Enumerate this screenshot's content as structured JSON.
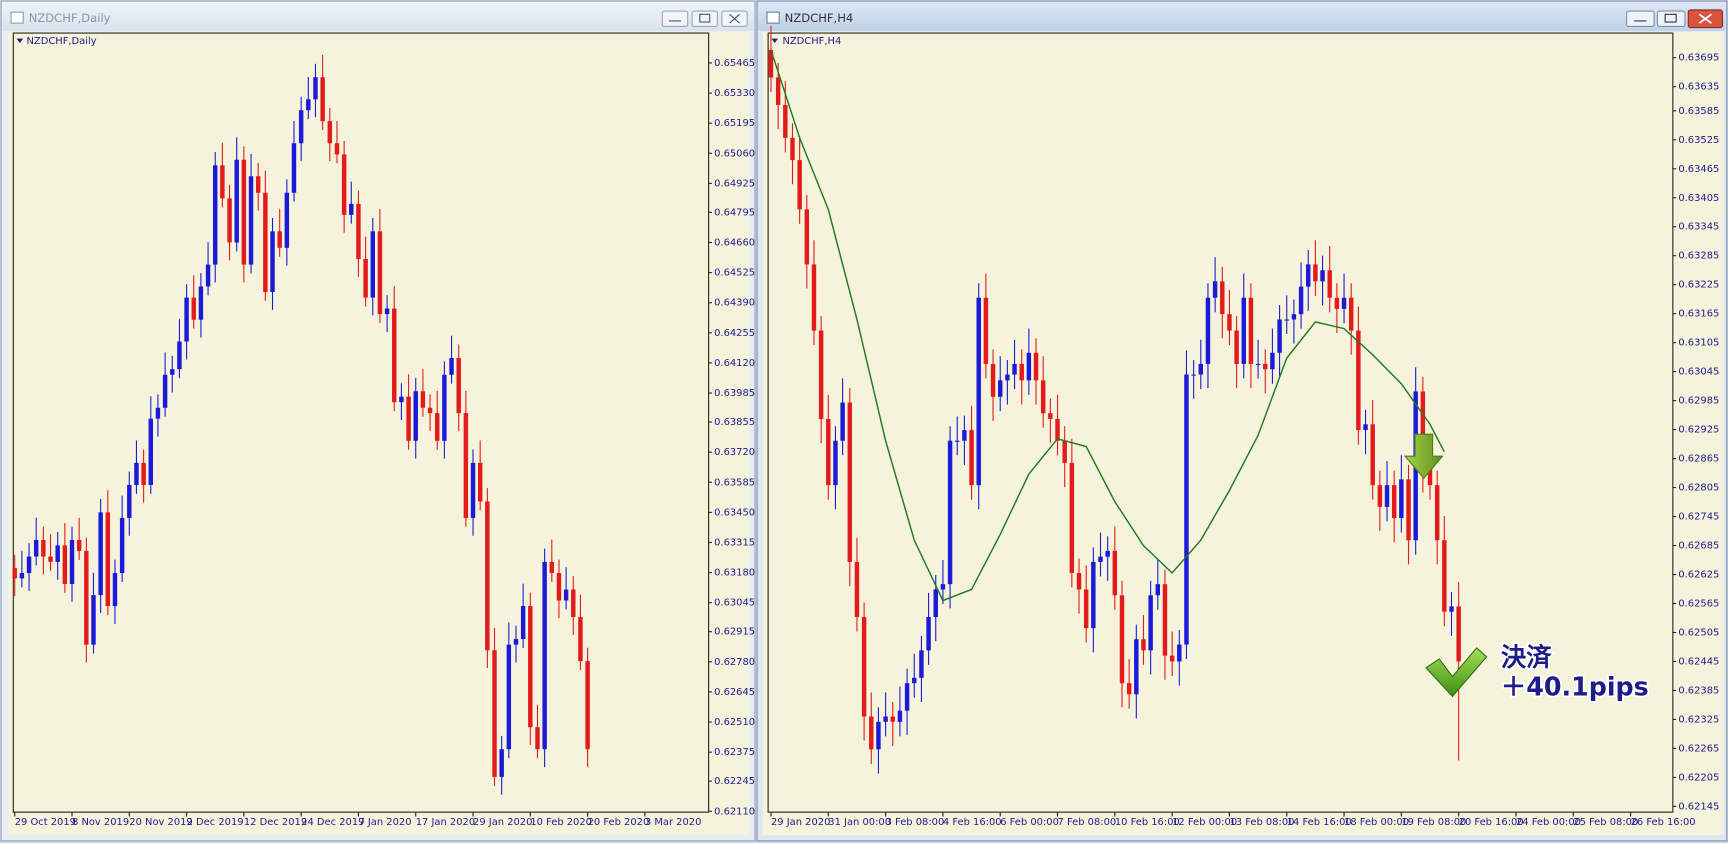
{
  "chart_data": [
    {
      "type": "candlestick",
      "window_title": "NZDCHF,Daily",
      "title": "NZDCHF,Daily",
      "up_color": "#1a1ad8",
      "down_color": "#e31b1b",
      "background": "#f6f3dc",
      "xlim": [
        -0.2,
        96.9
      ],
      "ylim": [
        0.62106,
        0.65599
      ],
      "yticks": [
        {
          "value": 0.6211,
          "label": "0.62110"
        },
        0.62245,
        0.62375,
        {
          "value": 0.6251,
          "label": "0.62510"
        },
        0.62645,
        {
          "value": 0.6278,
          "label": "0.62780"
        },
        0.62915,
        0.63045,
        {
          "value": 0.6318,
          "label": "0.63180"
        },
        0.63315,
        {
          "value": 0.6345,
          "label": "0.63450"
        },
        0.63585,
        {
          "value": 0.6372,
          "label": "0.63720"
        },
        0.63855,
        0.63985,
        {
          "value": 0.6412,
          "label": "0.64120"
        },
        0.64255,
        {
          "value": 0.6439,
          "label": "0.64390"
        },
        0.64525,
        {
          "value": 0.6466,
          "label": "0.64660"
        },
        0.64795,
        0.64925,
        {
          "value": 0.6506,
          "label": "0.65060"
        },
        0.65195,
        {
          "value": 0.6533,
          "label": "0.65330"
        },
        0.65465
      ],
      "xticks": [
        {
          "value": 0,
          "label": "29 Oct 2019"
        },
        {
          "value": 8,
          "label": "8 Nov 2019"
        },
        {
          "value": 16,
          "label": "20 Nov 2019"
        },
        {
          "value": 24,
          "label": "2 Dec 2019"
        },
        {
          "value": 32,
          "label": "12 Dec 2019"
        },
        {
          "value": 40,
          "label": "24 Dec 2019"
        },
        {
          "value": 48,
          "label": "7 Jan 2020"
        },
        {
          "value": 56,
          "label": "17 Jan 2020"
        },
        {
          "value": 64,
          "label": "29 Jan 2020"
        },
        {
          "value": 72,
          "label": "10 Feb 2020"
        },
        {
          "value": 80,
          "label": "20 Feb 2020"
        },
        {
          "value": 88,
          "label": "3 Mar 2020"
        }
      ],
      "open": [
        0.632,
        0.63154,
        0.63178,
        0.63252,
        0.63326,
        0.63252,
        0.63228,
        0.63302,
        0.63129,
        0.63326,
        0.63277,
        0.62857,
        0.63079,
        0.6345,
        0.6303,
        0.63178,
        0.63425,
        0.63573,
        0.63672,
        0.63573,
        0.6387,
        0.63919,
        0.64067,
        0.64092,
        0.64216,
        0.64413,
        0.64314,
        0.64463,
        0.64561,
        0.65006,
        0.64858,
        0.6466,
        0.65031,
        0.64561,
        0.64957,
        0.64883,
        0.64438,
        0.6471,
        0.64636,
        0.64883,
        0.65105,
        0.65253,
        0.65302,
        0.65401,
        0.65204,
        0.65105,
        0.65055,
        0.64784,
        0.64833,
        0.64586,
        0.64413,
        0.6471,
        0.64339,
        0.64364,
        0.63944,
        0.63969,
        0.63771,
        0.63993,
        0.63919,
        0.63895,
        0.63771,
        0.64067,
        0.64142,
        0.63895,
        0.63425,
        0.63672,
        0.63499,
        0.62832,
        0.62264,
        0.62388,
        0.62857,
        0.62882,
        0.6303,
        0.62487,
        0.62388,
        0.63228,
        0.63178,
        0.63055,
        0.63104,
        0.62981,
        0.62783
      ],
      "high": [
        0.6326,
        0.63278,
        0.63312,
        0.63426,
        0.63386,
        0.63352,
        0.63362,
        0.63402,
        0.63386,
        0.63426,
        0.63337,
        0.63179,
        0.6351,
        0.6355,
        0.63238,
        0.63525,
        0.63633,
        0.63772,
        0.63732,
        0.6397,
        0.63979,
        0.64167,
        0.64152,
        0.64316,
        0.64473,
        0.64513,
        0.64523,
        0.64661,
        0.65066,
        0.65106,
        0.64918,
        0.65131,
        0.65091,
        0.65057,
        0.65017,
        0.64983,
        0.6477,
        0.6481,
        0.64943,
        0.65205,
        0.65313,
        0.65402,
        0.65461,
        0.65501,
        0.65264,
        0.65205,
        0.65115,
        0.64933,
        0.64893,
        0.64686,
        0.6477,
        0.6481,
        0.64424,
        0.64464,
        0.64029,
        0.64069,
        0.64053,
        0.64093,
        0.63979,
        0.63995,
        0.64127,
        0.64242,
        0.64202,
        0.63995,
        0.63732,
        0.63772,
        0.63559,
        0.62932,
        0.62448,
        0.62957,
        0.62942,
        0.6313,
        0.6309,
        0.62587,
        0.63288,
        0.63328,
        0.63238,
        0.63204,
        0.63164,
        0.63081,
        0.62843
      ],
      "low": [
        0.63074,
        0.63114,
        0.63098,
        0.63212,
        0.63172,
        0.63188,
        0.63148,
        0.63089,
        0.63049,
        0.63237,
        0.62777,
        0.62817,
        0.62999,
        0.6299,
        0.6295,
        0.63138,
        0.63345,
        0.63533,
        0.63493,
        0.63533,
        0.6379,
        0.63879,
        0.63987,
        0.64052,
        0.64136,
        0.64274,
        0.64234,
        0.64423,
        0.64481,
        0.64818,
        0.6458,
        0.6462,
        0.64481,
        0.64521,
        0.64803,
        0.64398,
        0.64358,
        0.64596,
        0.64556,
        0.64843,
        0.65025,
        0.65213,
        0.65222,
        0.65164,
        0.65025,
        0.65015,
        0.64704,
        0.64744,
        0.64506,
        0.64373,
        0.64333,
        0.64299,
        0.64259,
        0.63904,
        0.63864,
        0.63731,
        0.63691,
        0.63879,
        0.63815,
        0.63731,
        0.63691,
        0.64027,
        0.63815,
        0.63385,
        0.63345,
        0.63459,
        0.62752,
        0.62224,
        0.62184,
        0.62348,
        0.62777,
        0.62842,
        0.62407,
        0.62348,
        0.62308,
        0.63138,
        0.62975,
        0.63015,
        0.62901,
        0.62743,
        0.62308
      ],
      "close": [
        0.63154,
        0.63178,
        0.63252,
        0.63326,
        0.63252,
        0.63228,
        0.63302,
        0.63129,
        0.63326,
        0.63277,
        0.62857,
        0.63079,
        0.6345,
        0.6303,
        0.63178,
        0.63425,
        0.63573,
        0.63672,
        0.63573,
        0.6387,
        0.63919,
        0.64067,
        0.64092,
        0.64216,
        0.64413,
        0.64314,
        0.64463,
        0.64561,
        0.65006,
        0.64858,
        0.6466,
        0.65031,
        0.64561,
        0.64957,
        0.64883,
        0.64438,
        0.6471,
        0.64636,
        0.64883,
        0.65105,
        0.65253,
        0.65302,
        0.65401,
        0.65204,
        0.65105,
        0.65055,
        0.64784,
        0.64833,
        0.64586,
        0.64413,
        0.6471,
        0.64339,
        0.64364,
        0.63944,
        0.63969,
        0.63771,
        0.63993,
        0.63919,
        0.63895,
        0.63771,
        0.64067,
        0.64142,
        0.63895,
        0.63425,
        0.63672,
        0.63499,
        0.62832,
        0.62264,
        0.62388,
        0.62857,
        0.62882,
        0.6303,
        0.62487,
        0.62388,
        0.63228,
        0.63178,
        0.63055,
        0.63104,
        0.62981,
        0.62783,
        0.62388
      ]
    },
    {
      "type": "candlestick",
      "window_title": "NZDCHF,H4",
      "title": "NZDCHF,H4",
      "up_color": "#1a1ad8",
      "down_color": "#e31b1b",
      "background": "#f6f3dc",
      "xlim": [
        -0.4,
        125.9
      ],
      "ylim": [
        0.62133,
        0.63746
      ],
      "yticks": [
        0.62145,
        0.62205,
        0.62265,
        0.62325,
        0.62385,
        0.62445,
        0.62505,
        0.62565,
        0.62625,
        0.62685,
        0.62745,
        0.62805,
        0.62865,
        0.62925,
        0.62985,
        0.63045,
        0.63105,
        0.63165,
        0.63225,
        0.63285,
        0.63345,
        0.63405,
        0.63465,
        0.63525,
        0.63585,
        0.63635,
        0.63695
      ],
      "xticks": [
        {
          "value": 0,
          "label": "29 Jan 2020"
        },
        {
          "value": 8,
          "label": "31 Jan 00:00"
        },
        {
          "value": 16,
          "label": "3 Feb 08:00"
        },
        {
          "value": 24,
          "label": "4 Feb 16:00"
        },
        {
          "value": 32,
          "label": "6 Feb 00:00"
        },
        {
          "value": 40,
          "label": "7 Feb 08:00"
        },
        {
          "value": 48,
          "label": "10 Feb 16:00"
        },
        {
          "value": 56,
          "label": "12 Feb 00:00"
        },
        {
          "value": 64,
          "label": "13 Feb 08:00"
        },
        {
          "value": 72,
          "label": "14 Feb 16:00"
        },
        {
          "value": 80,
          "label": "18 Feb 00:00"
        },
        {
          "value": 88,
          "label": "19 Feb 08:00"
        },
        {
          "value": 96,
          "label": "20 Feb 16:00"
        },
        {
          "value": 104,
          "label": "24 Feb 00:00"
        },
        {
          "value": 112,
          "label": "25 Feb 08:00"
        },
        {
          "value": 120,
          "label": "26 Feb 16:00"
        }
      ],
      "open": [
        0.63711,
        0.63654,
        0.63597,
        0.63529,
        0.63483,
        0.63381,
        0.63267,
        0.6313,
        0.62947,
        0.6281,
        0.62902,
        0.62981,
        0.62651,
        0.62537,
        0.62331,
        0.62263,
        0.6232,
        0.62331,
        0.6232,
        0.62343,
        0.624,
        0.62411,
        0.62468,
        0.62537,
        0.62594,
        0.62605,
        0.62902,
        0.62902,
        0.62924,
        0.6281,
        0.63198,
        0.63061,
        0.62993,
        0.63027,
        0.63039,
        0.63061,
        0.63027,
        0.63084,
        0.63027,
        0.62959,
        0.62947,
        0.62902,
        0.62856,
        0.62628,
        0.62594,
        0.62514,
        0.62651,
        0.62662,
        0.62674,
        0.62582,
        0.624,
        0.62377,
        0.62491,
        0.62468,
        0.62582,
        0.62605,
        0.62457,
        0.62445,
        0.6248,
        0.63039,
        0.63039,
        0.63061,
        0.63198,
        0.63232,
        0.63164,
        0.6313,
        0.63061,
        0.63198,
        0.63061,
        0.63061,
        0.6305,
        0.63084,
        0.63153,
        0.63153,
        0.63164,
        0.63221,
        0.63267,
        0.63232,
        0.63255,
        0.63198,
        0.63175,
        0.63198,
        0.6313,
        0.62924,
        0.62936,
        0.6281,
        0.62765,
        0.6281,
        0.62742,
        0.62822,
        0.62696,
        0.63004,
        0.62845,
        0.6281,
        0.62696,
        0.62548,
        0.62559
      ],
      "high": [
        0.63761,
        0.63684,
        0.63647,
        0.63559,
        0.63533,
        0.63411,
        0.63317,
        0.6316,
        0.62997,
        0.62932,
        0.63031,
        0.63011,
        0.62701,
        0.62567,
        0.62381,
        0.6235,
        0.62381,
        0.62361,
        0.62393,
        0.6243,
        0.62461,
        0.62498,
        0.62587,
        0.62624,
        0.62655,
        0.62932,
        0.62952,
        0.62954,
        0.62974,
        0.63228,
        0.63248,
        0.63091,
        0.63077,
        0.63069,
        0.63111,
        0.63091,
        0.63134,
        0.63114,
        0.63077,
        0.62989,
        0.62997,
        0.62932,
        0.62906,
        0.62658,
        0.62644,
        0.62681,
        0.62712,
        0.62704,
        0.62724,
        0.62612,
        0.6245,
        0.62521,
        0.62541,
        0.62612,
        0.62655,
        0.62635,
        0.62507,
        0.6251,
        0.63089,
        0.63069,
        0.63111,
        0.63228,
        0.63282,
        0.63262,
        0.63214,
        0.6316,
        0.63248,
        0.63228,
        0.63111,
        0.63091,
        0.63134,
        0.63183,
        0.63203,
        0.63194,
        0.63271,
        0.63297,
        0.63317,
        0.63285,
        0.63305,
        0.63228,
        0.63248,
        0.63228,
        0.6318,
        0.62966,
        0.62986,
        0.6284,
        0.6286,
        0.6284,
        0.62872,
        0.62852,
        0.63054,
        0.63034,
        0.62895,
        0.6284,
        0.62746,
        0.62589,
        0.62609
      ],
      "low": [
        0.63624,
        0.63547,
        0.63499,
        0.63433,
        0.63351,
        0.63217,
        0.631,
        0.62897,
        0.6278,
        0.6276,
        0.62872,
        0.62601,
        0.62507,
        0.62281,
        0.62233,
        0.62213,
        0.6229,
        0.6227,
        0.6229,
        0.62293,
        0.6237,
        0.62361,
        0.62438,
        0.62487,
        0.62564,
        0.62555,
        0.62872,
        0.62852,
        0.6278,
        0.6276,
        0.63031,
        0.62943,
        0.62963,
        0.62977,
        0.63009,
        0.62977,
        0.62997,
        0.62977,
        0.62929,
        0.62897,
        0.62872,
        0.62806,
        0.62598,
        0.62544,
        0.62484,
        0.62464,
        0.62621,
        0.62612,
        0.62552,
        0.6235,
        0.62347,
        0.62327,
        0.62438,
        0.62418,
        0.62552,
        0.62407,
        0.62415,
        0.62395,
        0.6245,
        0.62989,
        0.63009,
        0.63011,
        0.63168,
        0.63114,
        0.631,
        0.63011,
        0.63031,
        0.63011,
        0.63031,
        0.63,
        0.6302,
        0.63034,
        0.63123,
        0.63103,
        0.63134,
        0.63171,
        0.63202,
        0.63182,
        0.63168,
        0.63125,
        0.63145,
        0.6308,
        0.62894,
        0.62874,
        0.6278,
        0.62715,
        0.62735,
        0.62692,
        0.62712,
        0.62646,
        0.62666,
        0.62795,
        0.6278,
        0.62646,
        0.62518,
        0.62498,
        0.6224
      ],
      "close": [
        0.63654,
        0.63597,
        0.63529,
        0.63483,
        0.63381,
        0.63267,
        0.6313,
        0.62947,
        0.6281,
        0.62902,
        0.62981,
        0.62651,
        0.62537,
        0.62331,
        0.62263,
        0.6232,
        0.62331,
        0.6232,
        0.62343,
        0.624,
        0.62411,
        0.62468,
        0.62537,
        0.62594,
        0.62605,
        0.62902,
        0.62902,
        0.62924,
        0.6281,
        0.63198,
        0.63061,
        0.62993,
        0.63027,
        0.63039,
        0.63061,
        0.63027,
        0.63084,
        0.63027,
        0.62959,
        0.62947,
        0.62902,
        0.62856,
        0.62628,
        0.62594,
        0.62514,
        0.62651,
        0.62662,
        0.62674,
        0.62582,
        0.624,
        0.62377,
        0.62491,
        0.62468,
        0.62582,
        0.62605,
        0.62457,
        0.62445,
        0.6248,
        0.63039,
        0.63039,
        0.63061,
        0.63198,
        0.63232,
        0.63164,
        0.6313,
        0.63061,
        0.63198,
        0.63061,
        0.63061,
        0.6305,
        0.63084,
        0.63153,
        0.63153,
        0.63164,
        0.63221,
        0.63267,
        0.63232,
        0.63255,
        0.63198,
        0.63175,
        0.63198,
        0.6313,
        0.62924,
        0.62936,
        0.6281,
        0.62765,
        0.6281,
        0.62742,
        0.62822,
        0.62696,
        0.63004,
        0.62845,
        0.6281,
        0.62696,
        0.62548,
        0.62559,
        0.62445
      ],
      "lines": [
        {
          "color": "#1f7a1f",
          "x": [
            0,
            4,
            8,
            12,
            16,
            20,
            24,
            28,
            32,
            36,
            40,
            44,
            48,
            52,
            56,
            60,
            64,
            68,
            72,
            76,
            80,
            84,
            88,
            92,
            94
          ],
          "values": [
            0.63711,
            0.63529,
            0.63381,
            0.63153,
            0.62902,
            0.62696,
            0.62571,
            0.62594,
            0.62708,
            0.62833,
            0.62906,
            0.6289,
            0.62776,
            0.62685,
            0.62628,
            0.62696,
            0.62799,
            0.62913,
            0.63073,
            0.63148,
            0.63134,
            0.6308,
            0.6302,
            0.62936,
            0.62879
          ]
        }
      ],
      "annotations": [
        {
          "text": "決済",
          "color": "#ff3d8c"
        },
        {
          "text": "＋40.1pips",
          "color": "#ff3d8c"
        }
      ]
    }
  ]
}
